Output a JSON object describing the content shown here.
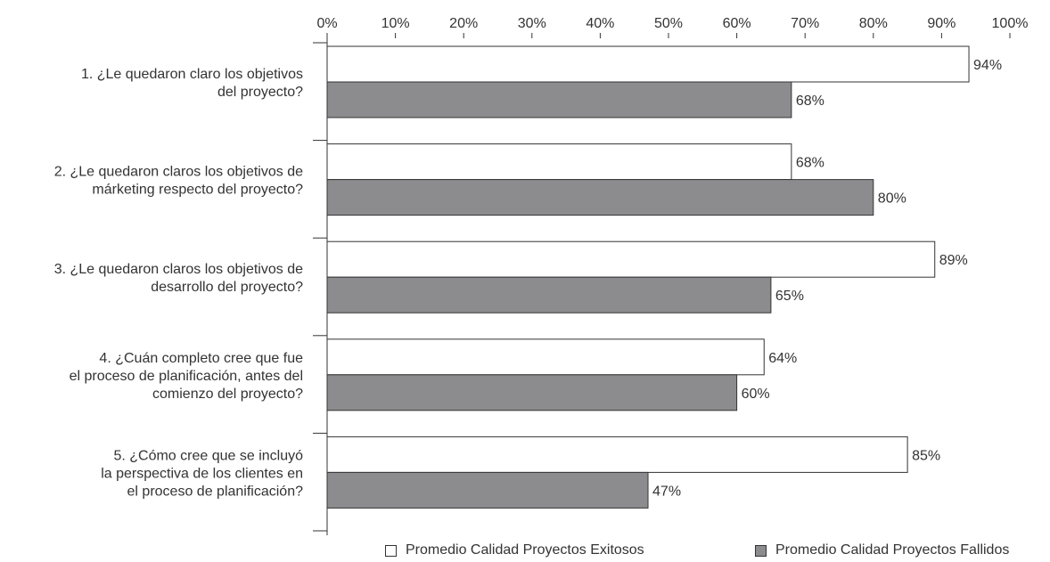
{
  "chart_data": {
    "type": "bar",
    "orientation": "horizontal",
    "categories": [
      [
        "1.   ¿Le quedaron claro los objetivos",
        "del proyecto?"
      ],
      [
        "2.   ¿Le quedaron claros los objetivos de",
        "márketing respecto del proyecto?"
      ],
      [
        "3.   ¿Le quedaron claros los objetivos de",
        "desarrollo del proyecto?"
      ],
      [
        "4.   ¿Cuán completo cree que fue",
        "el proceso de planificación, antes del",
        "comienzo del proyecto?"
      ],
      [
        "5.   ¿Cómo cree que se incluyó",
        "la perspectiva de los clientes en",
        "el proceso de planificación?"
      ]
    ],
    "series": [
      {
        "name": "Promedio Calidad Proyectos Exitosos",
        "values": [
          94,
          68,
          89,
          64,
          85
        ],
        "color": "#ffffff"
      },
      {
        "name": "Promedio Calidad Proyectos Fallidos",
        "values": [
          68,
          80,
          65,
          60,
          47
        ],
        "color": "#8c8c8f"
      }
    ],
    "value_labels": [
      [
        "94%",
        "68%",
        "89%",
        "64%",
        "85%"
      ],
      [
        "68%",
        "80%",
        "65%",
        "60%",
        "47%"
      ]
    ],
    "x_ticks": [
      "0%",
      "10%",
      "20%",
      "30%",
      "40%",
      "50%",
      "60%",
      "70%",
      "80%",
      "90%",
      "100%"
    ],
    "xlim": [
      0,
      100
    ],
    "axis_position": "top",
    "grid": false,
    "legend_position": "bottom"
  }
}
